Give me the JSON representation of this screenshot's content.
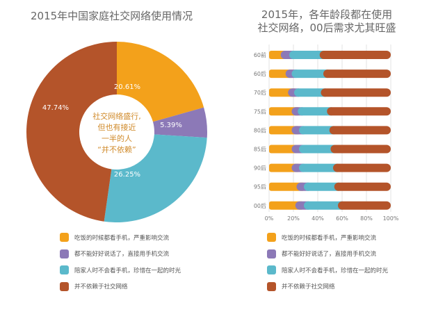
{
  "left": {
    "title": "2015年中国家庭社交网络使用情况",
    "center_text": [
      "社交网络盛行,",
      "但也有接近",
      "一半的人",
      "“并不依赖”"
    ]
  },
  "right": {
    "title_line1": "2015年，各年龄段都在使用",
    "title_line2": "社交网络，00后需求尤其旺盛"
  },
  "legend": [
    {
      "label": "吃饭的时候都看手机，严重影响交流",
      "color": "#f3a11b"
    },
    {
      "label": "都不能好好说话了，直接用手机交流",
      "color": "#8c79b7"
    },
    {
      "label": "陪家人时不会看手机，珍惜在一起的时光",
      "color": "#5bb9cb"
    },
    {
      "label": "并不依赖于社交网络",
      "color": "#b4542a"
    }
  ],
  "chart_data": [
    {
      "type": "pie",
      "title": "2015年中国家庭社交网络使用情况",
      "labels": [
        "吃饭的时候都看手机，严重影响交流",
        "都不能好好说话了，直接用手机交流",
        "陪家人时不会看手机，珍惜在一起的时光",
        "并不依赖于社交网络"
      ],
      "values": [
        20.61,
        5.39,
        26.25,
        47.74
      ],
      "value_labels": [
        "20.61%",
        "5.39%",
        "26.25%",
        "47.74%"
      ],
      "colors": [
        "#f3a11b",
        "#8c79b7",
        "#5bb9cb",
        "#b4542a"
      ]
    },
    {
      "type": "bar",
      "orientation": "horizontal",
      "stacked": true,
      "title": "2015年，各年龄段都在使用社交网络，00后需求尤其旺盛",
      "categories": [
        "60前",
        "60后",
        "70后",
        "75后",
        "80后",
        "85后",
        "90后",
        "95后",
        "00后"
      ],
      "series": [
        {
          "name": "吃饭的时候都看手机，严重影响交流",
          "color": "#f3a11b",
          "values": [
            13,
            17,
            19,
            22,
            22,
            22,
            22,
            26,
            25
          ]
        },
        {
          "name": "都不能好好说话了，直接用手机交流",
          "color": "#8c79b7",
          "values": [
            7,
            5,
            5,
            5,
            6,
            6,
            6,
            6,
            7
          ]
        },
        {
          "name": "陪家人时不会看手机，珍惜在一起的时光",
          "color": "#5bb9cb",
          "values": [
            25,
            26,
            22,
            24,
            25,
            26,
            28,
            25,
            28
          ]
        },
        {
          "name": "并不依赖于社交网络",
          "color": "#b4542a",
          "values": [
            55,
            52,
            54,
            49,
            47,
            46,
            44,
            43,
            40
          ]
        }
      ],
      "xlim": [
        0,
        100
      ],
      "xticks": [
        "0%",
        "20%",
        "40%",
        "60%",
        "80%",
        "100%"
      ],
      "grid": true
    }
  ]
}
